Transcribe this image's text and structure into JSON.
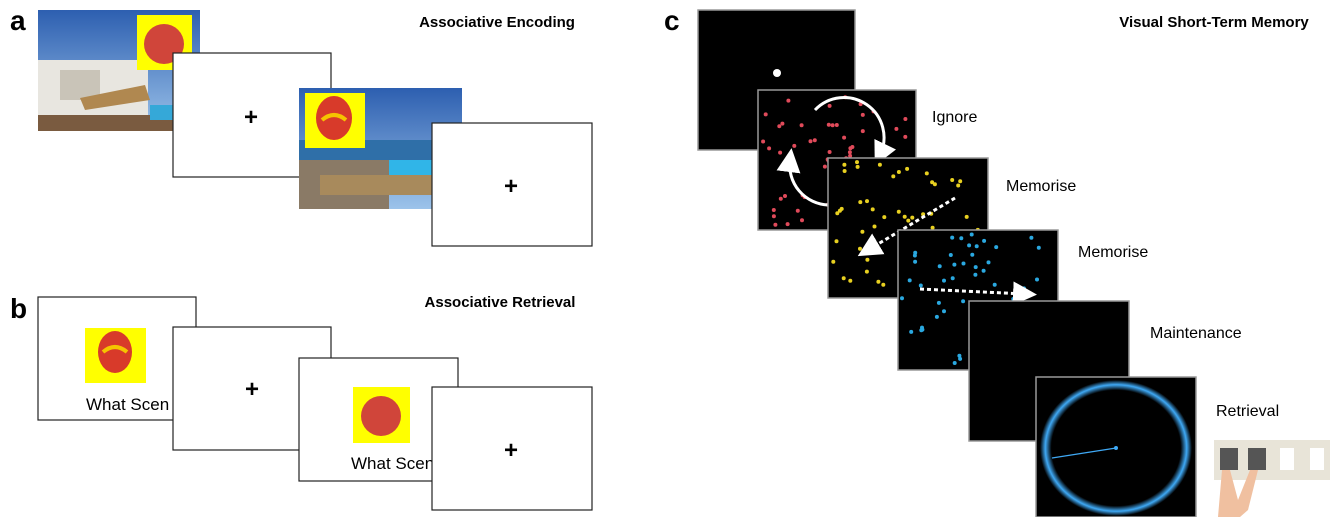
{
  "panels": [
    {
      "label": "a",
      "title": "Associative Encoding",
      "frames": [
        "+",
        "+"
      ]
    },
    {
      "label": "b",
      "title": "Associative Retrieval",
      "frames": [
        "What Scen",
        "+",
        "What Scen",
        "+"
      ]
    },
    {
      "label": "c",
      "title": "Visual Short-Term Memory",
      "steps": [
        "Ignore",
        "Memorise",
        "Memorise",
        "Maintenance",
        "Retrieval"
      ]
    }
  ]
}
